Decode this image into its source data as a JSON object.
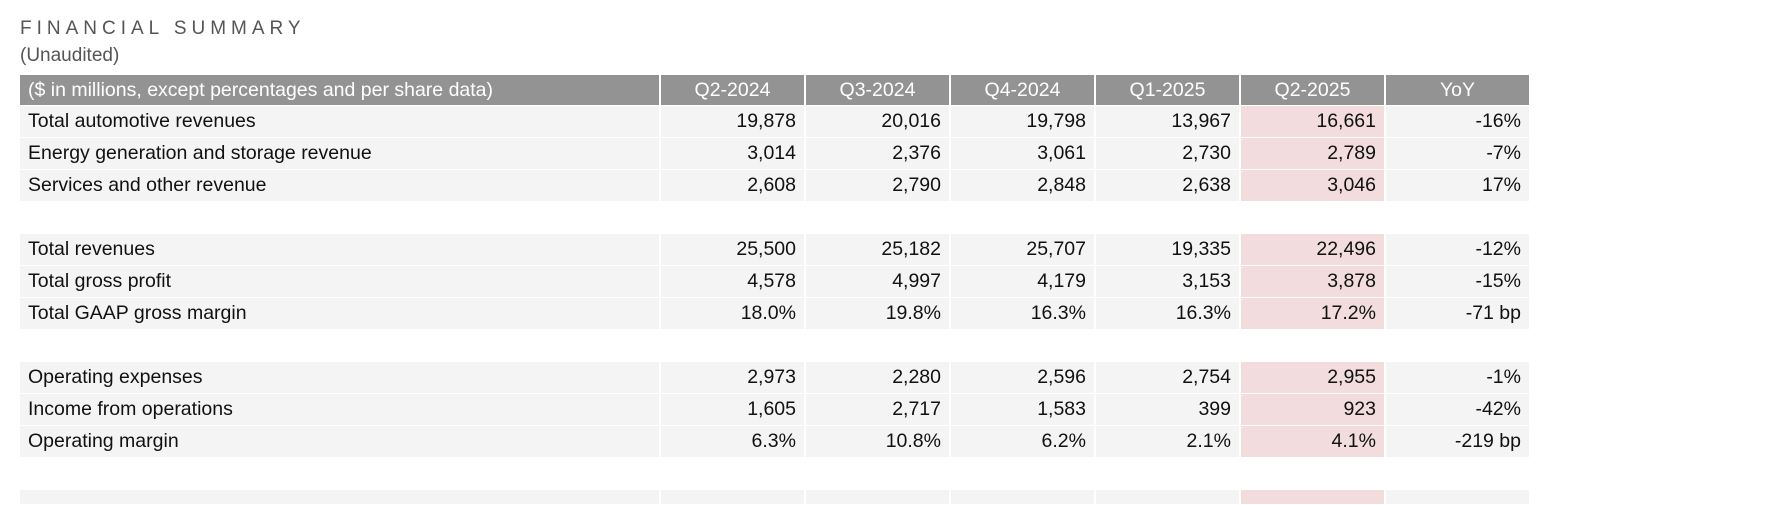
{
  "header": {
    "title": "FINANCIAL SUMMARY",
    "subtitle": "(Unaudited)"
  },
  "table": {
    "columns": [
      "($ in millions, except percentages and per share data)",
      "Q2-2024",
      "Q3-2024",
      "Q4-2024",
      "Q1-2025",
      "Q2-2025",
      "YoY"
    ],
    "groups": [
      [
        {
          "label": "Total automotive revenues",
          "values": [
            "19,878",
            "20,016",
            "19,798",
            "13,967",
            "16,661",
            "-16%"
          ]
        },
        {
          "label": "Energy generation and storage revenue",
          "values": [
            "3,014",
            "2,376",
            "3,061",
            "2,730",
            "2,789",
            "-7%"
          ]
        },
        {
          "label": "Services and other revenue",
          "values": [
            "2,608",
            "2,790",
            "2,848",
            "2,638",
            "3,046",
            "17%"
          ]
        }
      ],
      [
        {
          "label": "Total revenues",
          "values": [
            "25,500",
            "25,182",
            "25,707",
            "19,335",
            "22,496",
            "-12%"
          ]
        },
        {
          "label": "Total gross profit",
          "values": [
            "4,578",
            "4,997",
            "4,179",
            "3,153",
            "3,878",
            "-15%"
          ]
        },
        {
          "label": "Total GAAP gross margin",
          "values": [
            "18.0%",
            "19.8%",
            "16.3%",
            "16.3%",
            "17.2%",
            "-71 bp"
          ]
        }
      ],
      [
        {
          "label": "Operating expenses",
          "values": [
            "2,973",
            "2,280",
            "2,596",
            "2,754",
            "2,955",
            "-1%"
          ]
        },
        {
          "label": "Income from operations",
          "values": [
            "1,605",
            "2,717",
            "1,583",
            "399",
            "923",
            "-42%"
          ]
        },
        {
          "label": "Operating margin",
          "values": [
            "6.3%",
            "10.8%",
            "6.2%",
            "2.1%",
            "4.1%",
            "-219 bp"
          ]
        }
      ]
    ]
  },
  "colors": {
    "header_bg": "#939393",
    "row_bg": "#f4f4f4",
    "highlight_bg": "#f2dcdd"
  }
}
